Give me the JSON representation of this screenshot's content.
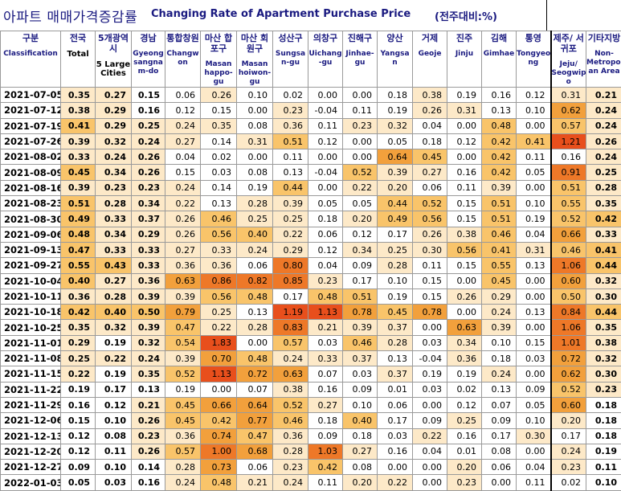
{
  "title": {
    "ko": "아파트 매매가격증감률",
    "en": "Changing Rate of Apartment Purchase Price",
    "unit": "(전주대비:%)"
  },
  "columns": [
    {
      "ko": "구분",
      "en": "Classification"
    },
    {
      "ko": "전국",
      "en": "Total"
    },
    {
      "ko": "5개광역시",
      "en": "5 Large Cities"
    },
    {
      "ko": "경남",
      "en": "Gyeong sangna m-do"
    },
    {
      "ko": "통합창원",
      "en": "Changw on"
    },
    {
      "ko": "마산 합포구",
      "en": "Masan happo- gu"
    },
    {
      "ko": "마산 회원구",
      "en": "Masan hoiwon- gu"
    },
    {
      "ko": "성산구",
      "en": "Sungsa n-gu"
    },
    {
      "ko": "의창구",
      "en": "Uichang -gu"
    },
    {
      "ko": "진해구",
      "en": "Jinhae- gu"
    },
    {
      "ko": "양산",
      "en": "Yangsa n"
    },
    {
      "ko": "거제",
      "en": "Geoje"
    },
    {
      "ko": "진주",
      "en": "Jinju"
    },
    {
      "ko": "김해",
      "en": "Gimhae"
    },
    {
      "ko": "통영",
      "en": "Tongyeo ng"
    },
    {
      "ko": "제주/ 서귀포",
      "en": "Jeju/ Seogwip o"
    },
    {
      "ko": "기타지방",
      "en": "Non- Metropolit an Area"
    }
  ],
  "rows": [
    {
      "date": "2021-07-05",
      "values": [
        "0.35",
        "0.27",
        "0.15",
        "0.06",
        "0.26",
        "0.10",
        "0.02",
        "0.00",
        "0.00",
        "0.18",
        "0.38",
        "0.19",
        "0.16",
        "0.12",
        "0.31",
        "0.21"
      ]
    },
    {
      "date": "2021-07-12",
      "values": [
        "0.38",
        "0.29",
        "0.16",
        "0.12",
        "0.15",
        "0.00",
        "0.23",
        "-0.04",
        "0.11",
        "0.19",
        "0.26",
        "0.31",
        "0.13",
        "0.10",
        "0.62",
        "0.24"
      ]
    },
    {
      "date": "2021-07-19",
      "values": [
        "0.41",
        "0.29",
        "0.25",
        "0.24",
        "0.35",
        "0.08",
        "0.36",
        "0.11",
        "0.23",
        "0.32",
        "0.04",
        "0.00",
        "0.48",
        "0.00",
        "0.57",
        "0.24"
      ]
    },
    {
      "date": "2021-07-26",
      "values": [
        "0.39",
        "0.32",
        "0.24",
        "0.27",
        "0.14",
        "0.31",
        "0.51",
        "0.12",
        "0.00",
        "0.05",
        "0.18",
        "0.12",
        "0.42",
        "0.41",
        "1.21",
        "0.26"
      ]
    },
    {
      "date": "2021-08-02",
      "values": [
        "0.33",
        "0.24",
        "0.26",
        "0.04",
        "0.02",
        "0.00",
        "0.11",
        "0.00",
        "0.00",
        "0.64",
        "0.45",
        "0.00",
        "0.42",
        "0.11",
        "0.16",
        "0.24"
      ]
    },
    {
      "date": "2021-08-09",
      "values": [
        "0.45",
        "0.34",
        "0.26",
        "0.15",
        "0.03",
        "0.08",
        "0.13",
        "-0.04",
        "0.52",
        "0.39",
        "0.27",
        "0.16",
        "0.42",
        "0.05",
        "0.91",
        "0.25"
      ]
    },
    {
      "date": "2021-08-16",
      "values": [
        "0.39",
        "0.23",
        "0.23",
        "0.24",
        "0.14",
        "0.19",
        "0.44",
        "0.00",
        "0.22",
        "0.20",
        "0.06",
        "0.11",
        "0.39",
        "0.00",
        "0.51",
        "0.28"
      ]
    },
    {
      "date": "2021-08-23",
      "values": [
        "0.51",
        "0.28",
        "0.34",
        "0.22",
        "0.13",
        "0.28",
        "0.39",
        "0.05",
        "0.05",
        "0.44",
        "0.52",
        "0.15",
        "0.51",
        "0.10",
        "0.55",
        "0.35"
      ]
    },
    {
      "date": "2021-08-30",
      "values": [
        "0.49",
        "0.33",
        "0.37",
        "0.26",
        "0.46",
        "0.25",
        "0.25",
        "0.18",
        "0.20",
        "0.49",
        "0.56",
        "0.15",
        "0.51",
        "0.19",
        "0.52",
        "0.42"
      ]
    },
    {
      "date": "2021-09-06",
      "values": [
        "0.48",
        "0.34",
        "0.29",
        "0.26",
        "0.56",
        "0.40",
        "0.22",
        "0.06",
        "0.12",
        "0.17",
        "0.26",
        "0.38",
        "0.46",
        "0.04",
        "0.66",
        "0.33"
      ]
    },
    {
      "date": "2021-09-13",
      "values": [
        "0.47",
        "0.33",
        "0.33",
        "0.27",
        "0.33",
        "0.24",
        "0.29",
        "0.12",
        "0.34",
        "0.25",
        "0.30",
        "0.56",
        "0.41",
        "0.31",
        "0.46",
        "0.41"
      ]
    },
    {
      "date": "2021-09-27",
      "values": [
        "0.55",
        "0.43",
        "0.33",
        "0.36",
        "0.36",
        "0.06",
        "0.80",
        "0.04",
        "0.09",
        "0.28",
        "0.11",
        "0.15",
        "0.55",
        "0.13",
        "1.06",
        "0.44"
      ]
    },
    {
      "date": "2021-10-04",
      "values": [
        "0.40",
        "0.27",
        "0.36",
        "0.63",
        "0.86",
        "0.82",
        "0.85",
        "0.23",
        "0.17",
        "0.10",
        "0.15",
        "0.00",
        "0.45",
        "0.00",
        "0.60",
        "0.32"
      ]
    },
    {
      "date": "2021-10-11",
      "values": [
        "0.36",
        "0.28",
        "0.39",
        "0.39",
        "0.56",
        "0.48",
        "0.17",
        "0.48",
        "0.51",
        "0.19",
        "0.15",
        "0.26",
        "0.29",
        "0.00",
        "0.50",
        "0.30"
      ]
    },
    {
      "date": "2021-10-18",
      "values": [
        "0.42",
        "0.40",
        "0.50",
        "0.79",
        "0.25",
        "0.13",
        "1.19",
        "1.13",
        "0.78",
        "0.45",
        "0.78",
        "0.00",
        "0.24",
        "0.13",
        "0.84",
        "0.44"
      ]
    },
    {
      "date": "2021-10-25",
      "values": [
        "0.35",
        "0.32",
        "0.39",
        "0.47",
        "0.22",
        "0.28",
        "0.83",
        "0.21",
        "0.39",
        "0.37",
        "0.00",
        "0.63",
        "0.39",
        "0.00",
        "1.06",
        "0.35"
      ]
    },
    {
      "date": "2021-11-01",
      "values": [
        "0.29",
        "0.19",
        "0.32",
        "0.54",
        "1.83",
        "0.00",
        "0.57",
        "0.03",
        "0.46",
        "0.28",
        "0.03",
        "0.34",
        "0.10",
        "0.15",
        "1.01",
        "0.38"
      ]
    },
    {
      "date": "2021-11-08",
      "values": [
        "0.25",
        "0.22",
        "0.24",
        "0.39",
        "0.70",
        "0.48",
        "0.24",
        "0.33",
        "0.37",
        "0.13",
        "-0.04",
        "0.36",
        "0.18",
        "0.03",
        "0.72",
        "0.32"
      ]
    },
    {
      "date": "2021-11-15",
      "values": [
        "0.22",
        "0.19",
        "0.35",
        "0.52",
        "1.13",
        "0.72",
        "0.63",
        "0.07",
        "0.03",
        "0.37",
        "0.19",
        "0.19",
        "0.24",
        "0.00",
        "0.62",
        "0.30"
      ]
    },
    {
      "date": "2021-11-22",
      "values": [
        "0.19",
        "0.17",
        "0.13",
        "0.19",
        "0.00",
        "0.07",
        "0.38",
        "0.16",
        "0.09",
        "0.01",
        "0.03",
        "0.02",
        "0.13",
        "0.09",
        "0.52",
        "0.23"
      ]
    },
    {
      "date": "2021-11-29",
      "values": [
        "0.16",
        "0.12",
        "0.21",
        "0.45",
        "0.66",
        "0.64",
        "0.52",
        "0.27",
        "0.10",
        "0.06",
        "0.00",
        "0.12",
        "0.07",
        "0.05",
        "0.60",
        "0.18"
      ]
    },
    {
      "date": "2021-12-06",
      "values": [
        "0.15",
        "0.10",
        "0.26",
        "0.45",
        "0.42",
        "0.77",
        "0.46",
        "0.18",
        "0.40",
        "0.17",
        "0.09",
        "0.25",
        "0.09",
        "0.10",
        "0.20",
        "0.18"
      ]
    },
    {
      "date": "2021-12-13",
      "values": [
        "0.12",
        "0.08",
        "0.23",
        "0.36",
        "0.74",
        "0.47",
        "0.36",
        "0.09",
        "0.18",
        "0.03",
        "0.22",
        "0.16",
        "0.17",
        "0.30",
        "0.17",
        "0.18"
      ]
    },
    {
      "date": "2021-12-20",
      "values": [
        "0.12",
        "0.11",
        "0.26",
        "0.57",
        "1.00",
        "0.68",
        "0.28",
        "1.03",
        "0.27",
        "0.16",
        "0.04",
        "0.01",
        "0.08",
        "0.00",
        "0.24",
        "0.19"
      ]
    },
    {
      "date": "2021-12-27",
      "values": [
        "0.09",
        "0.10",
        "0.14",
        "0.28",
        "0.73",
        "0.06",
        "0.23",
        "0.42",
        "0.08",
        "0.00",
        "0.00",
        "0.20",
        "0.06",
        "0.04",
        "0.23",
        "0.11"
      ]
    },
    {
      "date": "2022-01-03",
      "values": [
        "0.05",
        "0.03",
        "0.16",
        "0.24",
        "0.48",
        "0.21",
        "0.24",
        "0.11",
        "0.20",
        "0.22",
        "0.00",
        "0.23",
        "0.00",
        "0.11",
        "0.02",
        "0.10"
      ]
    }
  ],
  "colors": {
    "header_text": "#1a1a80",
    "heat_low": "#fde9c8",
    "heat_mid": "#f9c46a",
    "heat_high": "#f2a03c",
    "heat_max": "#ee7828",
    "heat_peak": "#e84f1c"
  }
}
